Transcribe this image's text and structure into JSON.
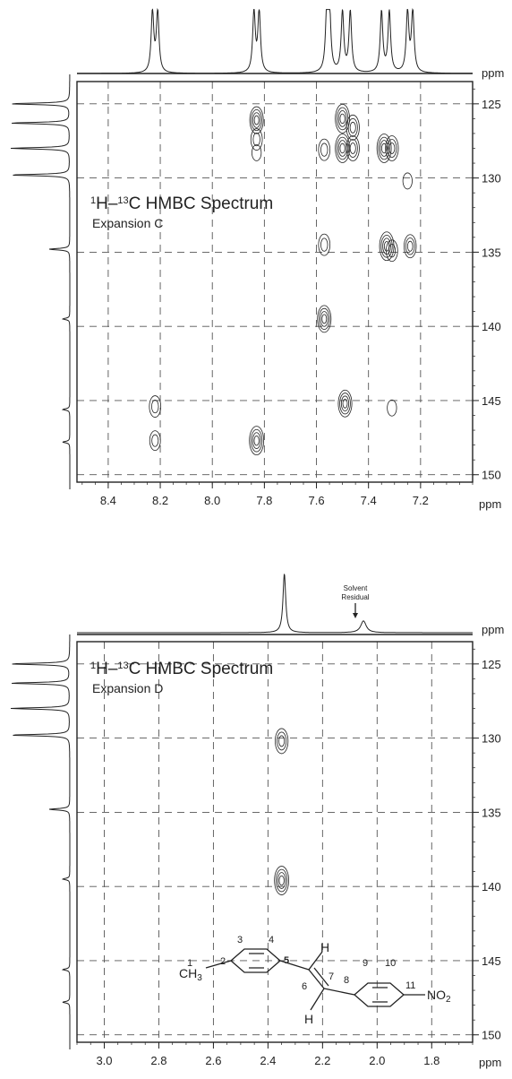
{
  "chart_data": [
    {
      "type": "heatmap",
      "title": "¹H–¹³C HMBC Spectrum",
      "subtitle": "Expansion C",
      "xlabel": "ppm",
      "ylabel": "ppm",
      "x_unit": "ppm",
      "y_unit": "ppm",
      "xlim": [
        8.52,
        7.0
      ],
      "ylim": [
        123.5,
        150.5
      ],
      "x_ticks": [
        "8.4",
        "8.2",
        "8.0",
        "7.8",
        "7.6",
        "7.4",
        "7.2"
      ],
      "y_ticks": [
        "125",
        "130",
        "135",
        "140",
        "145",
        "150"
      ],
      "grid": true,
      "proton_peaks": [
        8.23,
        8.21,
        7.84,
        7.82,
        7.56,
        7.55,
        7.5,
        7.47,
        7.35,
        7.32,
        7.25,
        7.23
      ],
      "carbon_peaks": [
        125.0,
        126.3,
        128.0,
        129.8,
        134.8,
        139.5,
        145.6,
        147.8
      ],
      "cross_peaks": [
        {
          "x": 8.22,
          "y": 145.4,
          "i": 0.6
        },
        {
          "x": 8.22,
          "y": 147.7,
          "i": 0.5
        },
        {
          "x": 7.83,
          "y": 126.1,
          "i": 0.9
        },
        {
          "x": 7.83,
          "y": 127.4,
          "i": 0.6
        },
        {
          "x": 7.83,
          "y": 128.3,
          "i": 0.3
        },
        {
          "x": 7.83,
          "y": 147.7,
          "i": 1.0
        },
        {
          "x": 7.57,
          "y": 128.1,
          "i": 0.6
        },
        {
          "x": 7.57,
          "y": 134.5,
          "i": 0.6
        },
        {
          "x": 7.57,
          "y": 139.5,
          "i": 0.9
        },
        {
          "x": 7.5,
          "y": 126.0,
          "i": 1.0
        },
        {
          "x": 7.5,
          "y": 128.0,
          "i": 1.0
        },
        {
          "x": 7.46,
          "y": 126.6,
          "i": 0.8
        },
        {
          "x": 7.46,
          "y": 128.0,
          "i": 0.8
        },
        {
          "x": 7.49,
          "y": 145.2,
          "i": 0.9
        },
        {
          "x": 7.34,
          "y": 128.0,
          "i": 1.0
        },
        {
          "x": 7.31,
          "y": 128.0,
          "i": 0.8
        },
        {
          "x": 7.33,
          "y": 134.6,
          "i": 1.0
        },
        {
          "x": 7.31,
          "y": 134.9,
          "i": 0.6
        },
        {
          "x": 7.31,
          "y": 145.5,
          "i": 0.3
        },
        {
          "x": 7.24,
          "y": 134.6,
          "i": 0.7
        },
        {
          "x": 7.25,
          "y": 130.2,
          "i": 0.3
        }
      ]
    },
    {
      "type": "heatmap",
      "title": "¹H–¹³C HMBC Spectrum",
      "subtitle": "Expansion D",
      "xlabel": "ppm",
      "ylabel": "ppm",
      "x_unit": "ppm",
      "y_unit": "ppm",
      "xlim": [
        3.1,
        1.65
      ],
      "ylim": [
        123.5,
        150.5
      ],
      "x_ticks": [
        "3.0",
        "2.8",
        "2.6",
        "2.4",
        "2.2",
        "2.0",
        "1.8"
      ],
      "y_ticks": [
        "125",
        "130",
        "135",
        "140",
        "145",
        "150"
      ],
      "grid": true,
      "proton_peaks": [
        2.34
      ],
      "solvent_peak": 2.05,
      "annotation": "Solvent Residual",
      "carbon_peaks": [
        125.0,
        126.3,
        128.0,
        129.8,
        134.8,
        139.5,
        145.6,
        147.8
      ],
      "cross_peaks": [
        {
          "x": 2.35,
          "y": 130.2,
          "i": 0.8
        },
        {
          "x": 2.35,
          "y": 139.6,
          "i": 1.0
        }
      ],
      "structure_labels": [
        "1",
        "2",
        "3",
        "4",
        "5",
        "6",
        "7",
        "8",
        "9",
        "10",
        "11",
        "CH",
        "3",
        "H",
        "H",
        "NO",
        "2"
      ]
    }
  ]
}
